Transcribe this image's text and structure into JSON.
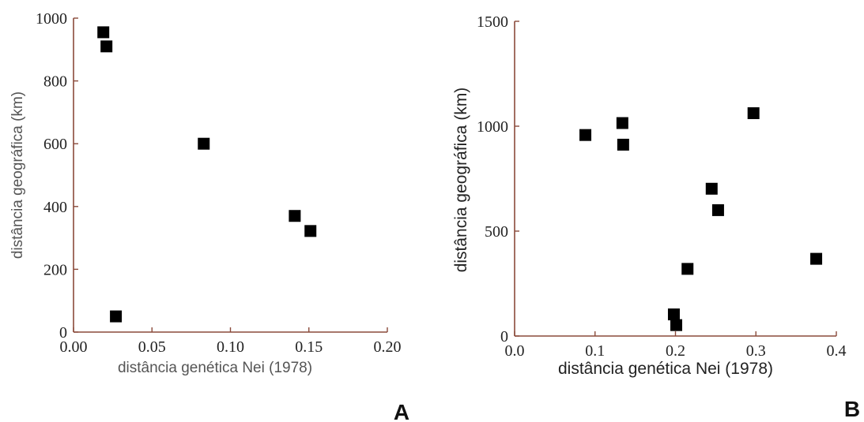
{
  "chart_data": [
    {
      "type": "scatter",
      "panel_label": "A",
      "xlabel": "distância genética Nei (1978)",
      "ylabel": "distância geográfica (km)",
      "xlim": [
        0.0,
        0.2
      ],
      "ylim": [
        0,
        1000
      ],
      "xticks": [
        "0.00",
        "0.05",
        "0.10",
        "0.15",
        "0.20"
      ],
      "xtick_values": [
        0.0,
        0.05,
        0.1,
        0.15,
        0.2
      ],
      "yticks": [
        "0",
        "200",
        "400",
        "600",
        "800",
        "1000"
      ],
      "ytick_values": [
        0,
        200,
        400,
        600,
        800,
        1000
      ],
      "points": [
        {
          "x": 0.019,
          "y": 955
        },
        {
          "x": 0.021,
          "y": 910
        },
        {
          "x": 0.027,
          "y": 50
        },
        {
          "x": 0.083,
          "y": 600
        },
        {
          "x": 0.141,
          "y": 370
        },
        {
          "x": 0.151,
          "y": 322
        }
      ],
      "grid": false,
      "colors": {
        "axis": "#8a4a3a",
        "marker": "#000000"
      }
    },
    {
      "type": "scatter",
      "panel_label": "B",
      "xlabel": "distância genética  Nei (1978)",
      "ylabel": "distância geográfica (km)",
      "xlim": [
        0.0,
        0.4
      ],
      "ylim": [
        0,
        1500
      ],
      "xticks": [
        "0.0",
        "0.1",
        "0.2",
        "0.3",
        "0.4"
      ],
      "xtick_values": [
        0.0,
        0.1,
        0.2,
        0.3,
        0.4
      ],
      "yticks": [
        "0",
        "500",
        "1000",
        "1500"
      ],
      "ytick_values": [
        0,
        500,
        1000,
        1500
      ],
      "points": [
        {
          "x": 0.088,
          "y": 958
        },
        {
          "x": 0.134,
          "y": 1015
        },
        {
          "x": 0.135,
          "y": 912
        },
        {
          "x": 0.198,
          "y": 103
        },
        {
          "x": 0.201,
          "y": 52
        },
        {
          "x": 0.215,
          "y": 320
        },
        {
          "x": 0.245,
          "y": 702
        },
        {
          "x": 0.253,
          "y": 600
        },
        {
          "x": 0.297,
          "y": 1062
        },
        {
          "x": 0.375,
          "y": 368
        }
      ],
      "grid": false,
      "colors": {
        "axis": "#8a4a3a",
        "marker": "#000000"
      }
    }
  ]
}
